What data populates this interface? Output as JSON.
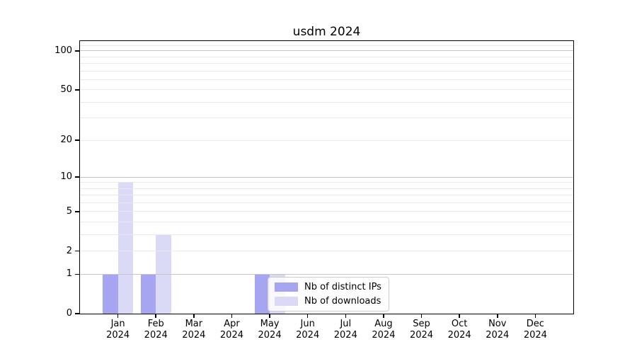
{
  "chart_data": {
    "type": "bar",
    "title": "usdm 2024",
    "categories": [
      "Jan",
      "Feb",
      "Mar",
      "Apr",
      "May",
      "Jun",
      "Jul",
      "Aug",
      "Sep",
      "Oct",
      "Nov",
      "Dec"
    ],
    "year_label": "2024",
    "series": [
      {
        "name": "Nb of distinct IPs",
        "color": "#a5a5f2",
        "values": [
          1,
          1,
          0,
          0,
          1,
          0,
          0,
          0,
          0,
          0,
          0,
          0
        ]
      },
      {
        "name": "Nb of downloads",
        "color": "#dadaf7",
        "values": [
          9,
          3,
          0,
          0,
          1,
          0,
          0,
          0,
          0,
          0,
          0,
          0
        ]
      }
    ],
    "yscale": "log1p",
    "ylim": [
      0,
      119
    ],
    "y_ticks": [
      0,
      1,
      2,
      5,
      10,
      20,
      50,
      100
    ],
    "major_gridlines": [
      1,
      10,
      100
    ],
    "minor_gridlines": [
      2,
      3,
      4,
      5,
      6,
      7,
      8,
      9,
      20,
      30,
      40,
      50,
      60,
      70,
      80,
      90,
      110
    ],
    "grid": "on",
    "legend_position": "lower center-left, above May bars"
  },
  "colors": {
    "bar_distinct_ips": "#a5a5f2",
    "bar_downloads": "#dadaf7",
    "major_grid": "#c4c4c4",
    "minor_grid": "#e9e9e9",
    "axis": "#000000",
    "legend_border": "#cccccc",
    "background": "#ffffff"
  }
}
